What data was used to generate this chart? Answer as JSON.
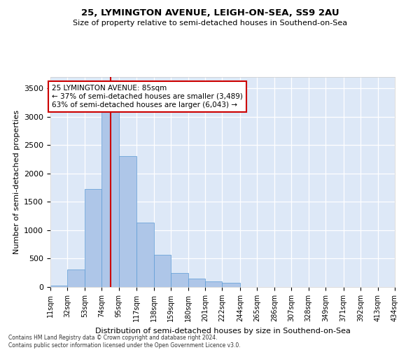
{
  "title_line1": "25, LYMINGTON AVENUE, LEIGH-ON-SEA, SS9 2AU",
  "title_line2": "Size of property relative to semi-detached houses in Southend-on-Sea",
  "xlabel": "Distribution of semi-detached houses by size in Southend-on-Sea",
  "ylabel": "Number of semi-detached properties",
  "footer_line1": "Contains HM Land Registry data © Crown copyright and database right 2024.",
  "footer_line2": "Contains public sector information licensed under the Open Government Licence v3.0.",
  "annotation_line1": "25 LYMINGTON AVENUE: 85sqm",
  "annotation_line2": "← 37% of semi-detached houses are smaller (3,489)",
  "annotation_line3": "63% of semi-detached houses are larger (6,043) →",
  "property_size": 85,
  "bar_color": "#aec6e8",
  "bar_edgecolor": "#5b9bd5",
  "vline_color": "#cc0000",
  "annotation_box_color": "#cc0000",
  "background_color": "#dde8f7",
  "fig_background": "#ffffff",
  "bin_edges": [
    11,
    32,
    53,
    74,
    95,
    117,
    138,
    159,
    180,
    201,
    222,
    244,
    265,
    286,
    307,
    328,
    349,
    371,
    392,
    413,
    434
  ],
  "bin_labels": [
    "11sqm",
    "32sqm",
    "53sqm",
    "74sqm",
    "95sqm",
    "117sqm",
    "138sqm",
    "159sqm",
    "180sqm",
    "201sqm",
    "222sqm",
    "244sqm",
    "265sqm",
    "286sqm",
    "307sqm",
    "328sqm",
    "349sqm",
    "371sqm",
    "392sqm",
    "413sqm",
    "434sqm"
  ],
  "bar_heights": [
    30,
    305,
    1730,
    3430,
    2310,
    1140,
    570,
    245,
    145,
    95,
    80,
    0,
    0,
    0,
    0,
    0,
    0,
    0,
    0,
    0
  ],
  "ylim": [
    0,
    3700
  ],
  "yticks": [
    0,
    500,
    1000,
    1500,
    2000,
    2500,
    3000,
    3500
  ]
}
